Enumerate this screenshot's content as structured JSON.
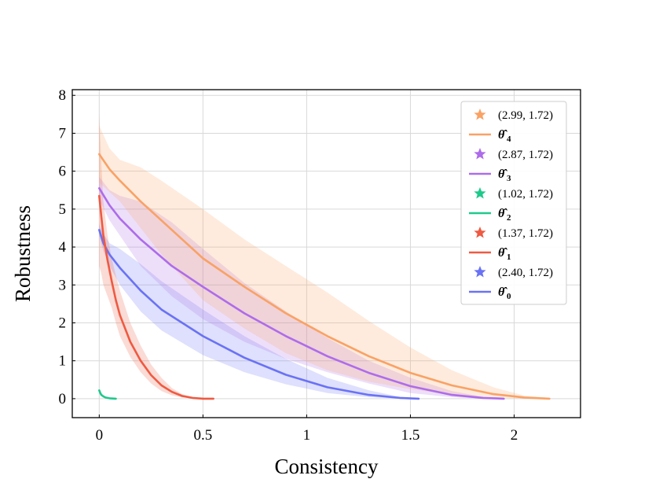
{
  "chart_data": {
    "type": "line",
    "title": "",
    "xlabel": "Consistency",
    "ylabel": "Robustness",
    "xlim": [
      -0.13,
      2.32
    ],
    "ylim": [
      -0.5,
      8.15
    ],
    "xticks": [
      0,
      0.5,
      1,
      1.5,
      2
    ],
    "xtick_labels": [
      "0",
      "0.5",
      "1",
      "1.5",
      "2"
    ],
    "yticks": [
      0,
      1,
      2,
      3,
      4,
      5,
      6,
      7,
      8
    ],
    "ytick_labels": [
      "0",
      "1",
      "2",
      "3",
      "4",
      "5",
      "6",
      "7",
      "8"
    ],
    "grid": true,
    "legend_position": "top-right",
    "series": [
      {
        "name": "θ̂4",
        "base": "θ̂",
        "sub": "4",
        "color": "#F9A265",
        "star_label": "(2.99, 1.72)",
        "x": [
          0,
          0.05,
          0.1,
          0.2,
          0.3,
          0.5,
          0.7,
          0.9,
          1.1,
          1.3,
          1.5,
          1.7,
          1.9,
          2.05,
          2.17
        ],
        "y": [
          6.45,
          6.05,
          5.75,
          5.2,
          4.7,
          3.7,
          2.95,
          2.25,
          1.65,
          1.12,
          0.68,
          0.35,
          0.12,
          0.03,
          0.0
        ],
        "band_upper": [
          7.2,
          6.6,
          6.3,
          6.1,
          5.75,
          5.0,
          4.2,
          3.5,
          2.8,
          2.05,
          1.35,
          0.75,
          0.3,
          0.08,
          0.02
        ],
        "band_lower": [
          5.7,
          5.45,
          5.2,
          4.5,
          3.8,
          2.6,
          1.85,
          1.2,
          0.75,
          0.45,
          0.25,
          0.1,
          0.03,
          0.0,
          0.0
        ]
      },
      {
        "name": "θ̂3",
        "base": "θ̂",
        "sub": "3",
        "color": "#AD6CEA",
        "star_label": "(2.87, 1.72)",
        "x": [
          0,
          0.05,
          0.1,
          0.2,
          0.35,
          0.5,
          0.7,
          0.9,
          1.1,
          1.3,
          1.5,
          1.7,
          1.85,
          1.95
        ],
        "y": [
          5.55,
          5.1,
          4.75,
          4.2,
          3.5,
          2.95,
          2.25,
          1.65,
          1.12,
          0.68,
          0.33,
          0.1,
          0.02,
          0.0
        ],
        "band_upper": [
          5.85,
          5.5,
          5.35,
          5.2,
          4.65,
          3.95,
          3.05,
          2.3,
          1.6,
          1.0,
          0.55,
          0.2,
          0.05,
          0.0
        ],
        "band_lower": [
          5.25,
          4.7,
          4.3,
          3.5,
          2.7,
          2.1,
          1.5,
          1.05,
          0.7,
          0.4,
          0.15,
          0.04,
          0.0,
          0.0
        ]
      },
      {
        "name": "θ̂2",
        "base": "θ̂",
        "sub": "2",
        "color": "#1FC98C",
        "star_label": "(1.02, 1.72)",
        "x": [
          0,
          0.005,
          0.01,
          0.02,
          0.03,
          0.05,
          0.08
        ],
        "y": [
          0.22,
          0.15,
          0.1,
          0.06,
          0.03,
          0.01,
          0.0
        ],
        "band_upper": [
          0.25,
          0.18,
          0.12,
          0.07,
          0.04,
          0.01,
          0.0
        ],
        "band_lower": [
          0.19,
          0.12,
          0.08,
          0.05,
          0.02,
          0.0,
          0.0
        ]
      },
      {
        "name": "θ̂1",
        "base": "θ̂",
        "sub": "1",
        "color": "#EE5A42",
        "star_label": "(1.37, 1.72)",
        "x": [
          0,
          0.01,
          0.02,
          0.04,
          0.06,
          0.08,
          0.1,
          0.15,
          0.2,
          0.25,
          0.3,
          0.35,
          0.4,
          0.45,
          0.5,
          0.55
        ],
        "y": [
          5.35,
          4.8,
          4.3,
          3.65,
          3.1,
          2.6,
          2.2,
          1.5,
          1.0,
          0.62,
          0.35,
          0.18,
          0.07,
          0.02,
          0.0,
          0.0
        ],
        "band_upper": [
          7.5,
          6.2,
          5.2,
          4.3,
          3.7,
          3.25,
          2.85,
          2.0,
          1.4,
          0.9,
          0.55,
          0.28,
          0.12,
          0.04,
          0.01,
          0.0
        ],
        "band_lower": [
          3.5,
          3.3,
          3.0,
          2.7,
          2.4,
          2.0,
          1.65,
          1.1,
          0.7,
          0.4,
          0.2,
          0.09,
          0.03,
          0.01,
          0.0,
          0.0
        ]
      },
      {
        "name": "θ̂0",
        "base": "θ̂",
        "sub": "0",
        "color": "#6A72F4",
        "star_label": "(2.40, 1.72)",
        "x": [
          0,
          0.02,
          0.05,
          0.1,
          0.2,
          0.3,
          0.5,
          0.7,
          0.9,
          1.1,
          1.3,
          1.45,
          1.54
        ],
        "y": [
          4.45,
          4.1,
          3.8,
          3.45,
          2.85,
          2.35,
          1.65,
          1.08,
          0.63,
          0.3,
          0.1,
          0.02,
          0.0
        ],
        "band_upper": [
          4.6,
          4.35,
          4.1,
          3.95,
          3.55,
          3.1,
          2.35,
          1.65,
          1.05,
          0.55,
          0.22,
          0.05,
          0.0
        ],
        "band_lower": [
          4.3,
          3.9,
          3.5,
          3.0,
          2.3,
          1.8,
          1.15,
          0.7,
          0.38,
          0.15,
          0.04,
          0.0,
          0.0
        ]
      }
    ]
  }
}
